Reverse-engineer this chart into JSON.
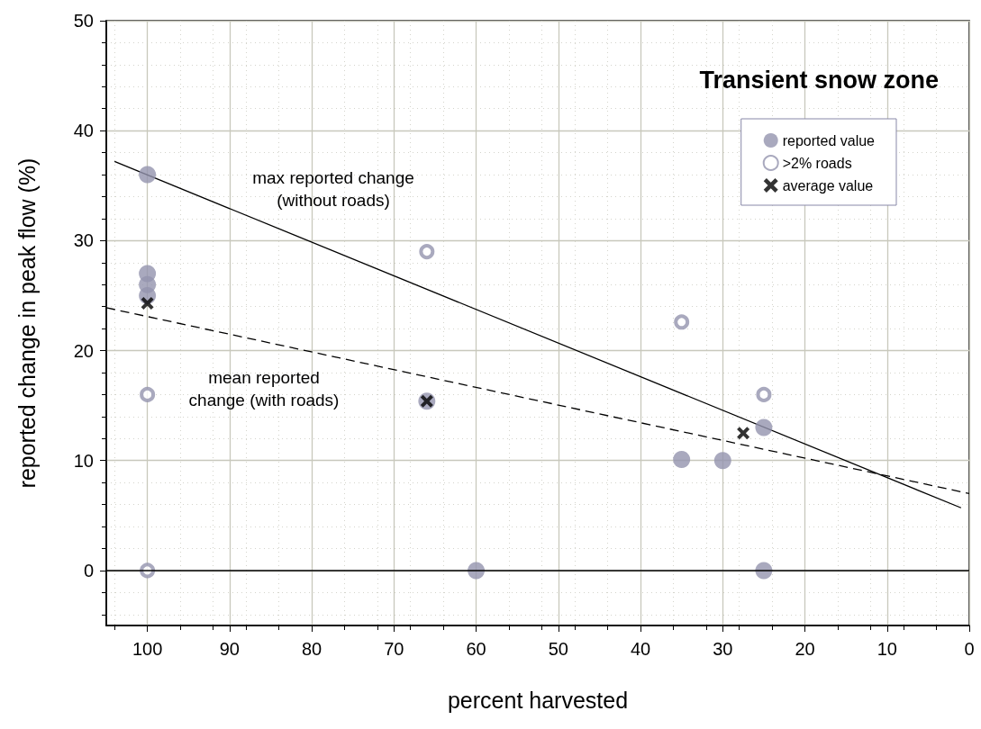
{
  "chart_data": {
    "type": "scatter",
    "title": "Transient snow zone",
    "xlabel": "percent harvested",
    "ylabel": "reported change in peak flow (%)",
    "xlim": [
      105,
      0
    ],
    "xticks": [
      100,
      90,
      80,
      70,
      60,
      50,
      40,
      30,
      20,
      10,
      0
    ],
    "ylim": [
      -5,
      50
    ],
    "yticks": [
      0,
      10,
      20,
      30,
      40,
      50
    ],
    "grid": true,
    "legend": "top right",
    "series": [
      {
        "name": "reported value",
        "color": "#9494ae",
        "marker": "circle",
        "x": [
          100,
          100,
          100,
          100,
          66,
          60,
          35,
          30,
          25,
          25
        ],
        "values": [
          36,
          27,
          26,
          25,
          15.4,
          0,
          10.1,
          10,
          13,
          0
        ]
      },
      {
        "name": ">2% roads",
        "color": "#9494ae",
        "marker": "circle",
        "x": [
          100,
          100,
          66,
          35,
          25
        ],
        "values": [
          16,
          0,
          29,
          22.6,
          16
        ]
      },
      {
        "name": "average value",
        "color": "#000000",
        "marker": "cross",
        "x": [
          100,
          66,
          27.5
        ],
        "values": [
          24.3,
          15.4,
          12.5
        ]
      },
      {
        "type": "line",
        "color": "#000000",
        "marker": "none",
        "line_style": "solid",
        "x": [
          104,
          1
        ],
        "values": [
          37.2,
          5.7
        ]
      },
      {
        "type": "line",
        "color": "#000000",
        "marker": "none",
        "line_style": "dashed",
        "x": [
          105,
          0
        ],
        "values": [
          23.9,
          7.0
        ]
      }
    ],
    "ref_lines": [
      {
        "axis": "y",
        "value": 0,
        "color": "#000000",
        "line_style": "solid"
      }
    ],
    "annotations": [
      "max reported change\n(without roads)",
      "mean reported\nchange (with roads)"
    ]
  }
}
